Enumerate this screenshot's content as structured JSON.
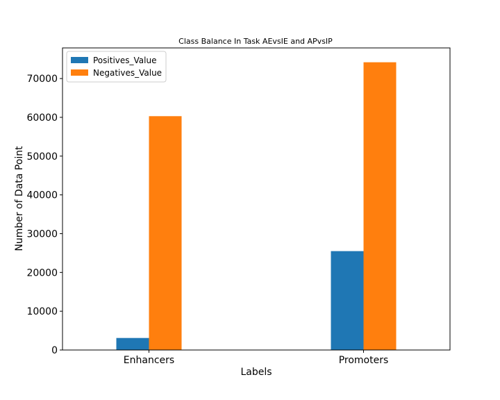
{
  "chart_data": {
    "type": "bar",
    "title": "Class Balance In Task AEvsIE and APvsIP",
    "xlabel": "Labels",
    "ylabel": "Number of Data Point",
    "categories": [
      "Enhancers",
      "Promoters"
    ],
    "series": [
      {
        "name": "Positives_Value",
        "values": [
          3100,
          25500
        ],
        "color": "#1f77b4"
      },
      {
        "name": "Negatives_Value",
        "values": [
          60300,
          74200
        ],
        "color": "#ff7f0e"
      }
    ],
    "ylim": [
      0,
      77900
    ],
    "yticks": [
      0,
      10000,
      20000,
      30000,
      40000,
      50000,
      60000,
      70000
    ],
    "ytick_labels": [
      "0",
      "10000",
      "20000",
      "30000",
      "40000",
      "50000",
      "60000",
      "70000"
    ],
    "grid": false,
    "legend_position": "top-left"
  }
}
